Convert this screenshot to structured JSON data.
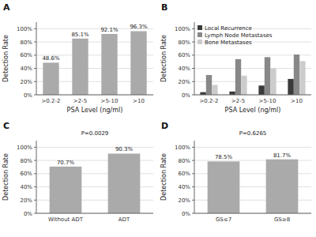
{
  "chart_data": [
    {
      "type": "bar",
      "title": "A",
      "categories": [
        ">0.2-2",
        ">2-5",
        ">5-10",
        ">10"
      ],
      "values": [
        48.6,
        85.1,
        92.1,
        96.3
      ],
      "value_labels": [
        "48.6%",
        "85.1%",
        "92.1%",
        "96.3%"
      ],
      "data_labels": true,
      "color": "#aaaaaa",
      "xlabel": "PSA Level (ng/ml)",
      "ylabel": "Detection Rate",
      "ylim": [
        0,
        110
      ],
      "yticks": [
        {
          "value": 0,
          "label": "0%"
        },
        {
          "value": 20,
          "label": "20%"
        },
        {
          "value": 40,
          "label": "40%"
        },
        {
          "value": 60,
          "label": "60%"
        },
        {
          "value": 80,
          "label": "80%"
        },
        {
          "value": 100,
          "label": "100%"
        }
      ],
      "grid": true
    },
    {
      "type": "bar",
      "title": "B",
      "categories": [
        ">0.2-2",
        ">2-5",
        ">5-10",
        ">10"
      ],
      "series": [
        {
          "name": "Local Recurrence",
          "color": "#3a3a3a",
          "values": [
            4,
            5,
            14,
            24
          ]
        },
        {
          "name": "Lymph Node Metastases",
          "color": "#888888",
          "values": [
            30,
            54,
            57,
            61
          ]
        },
        {
          "name": "Bone Metastases",
          "color": "#cccccc",
          "values": [
            15,
            29,
            40,
            51
          ]
        }
      ],
      "legend": "upper left",
      "xlabel": "PSA Level (ng/ml)",
      "ylabel": "Detection Rate",
      "ylim": [
        0,
        110
      ],
      "yticks": [
        {
          "value": 0,
          "label": "0%"
        },
        {
          "value": 20,
          "label": "20%"
        },
        {
          "value": 40,
          "label": "40%"
        },
        {
          "value": 60,
          "label": "60%"
        },
        {
          "value": 80,
          "label": "80%"
        },
        {
          "value": 100,
          "label": "100%"
        }
      ],
      "grid": true
    },
    {
      "type": "bar",
      "title": "C",
      "categories": [
        "Without ADT",
        "ADT"
      ],
      "values": [
        70.7,
        90.3
      ],
      "value_labels": [
        "70.7%",
        "90.3%"
      ],
      "data_labels": true,
      "color": "#aaaaaa",
      "ylabel": "Detection Rate",
      "annotation": "P=0.0029",
      "ylim": [
        0,
        110
      ],
      "yticks": [
        {
          "value": 0,
          "label": "0%"
        },
        {
          "value": 20,
          "label": "20%"
        },
        {
          "value": 40,
          "label": "40%"
        },
        {
          "value": 60,
          "label": "60%"
        },
        {
          "value": 80,
          "label": "80%"
        },
        {
          "value": 100,
          "label": "100%"
        }
      ],
      "grid": true
    },
    {
      "type": "bar",
      "title": "D",
      "categories": [
        "GS≤7",
        "GS≥8"
      ],
      "values": [
        78.5,
        81.7
      ],
      "value_labels": [
        "78.5%",
        "81.7%"
      ],
      "data_labels": true,
      "color": "#aaaaaa",
      "ylabel": "Detection Rate",
      "annotation": "P=0.6265",
      "ylim": [
        0,
        110
      ],
      "yticks": [
        {
          "value": 0,
          "label": "0%"
        },
        {
          "value": 20,
          "label": "20%"
        },
        {
          "value": 40,
          "label": "40%"
        },
        {
          "value": 60,
          "label": "60%"
        },
        {
          "value": 80,
          "label": "80%"
        },
        {
          "value": 100,
          "label": "100%"
        }
      ],
      "grid": true
    }
  ]
}
